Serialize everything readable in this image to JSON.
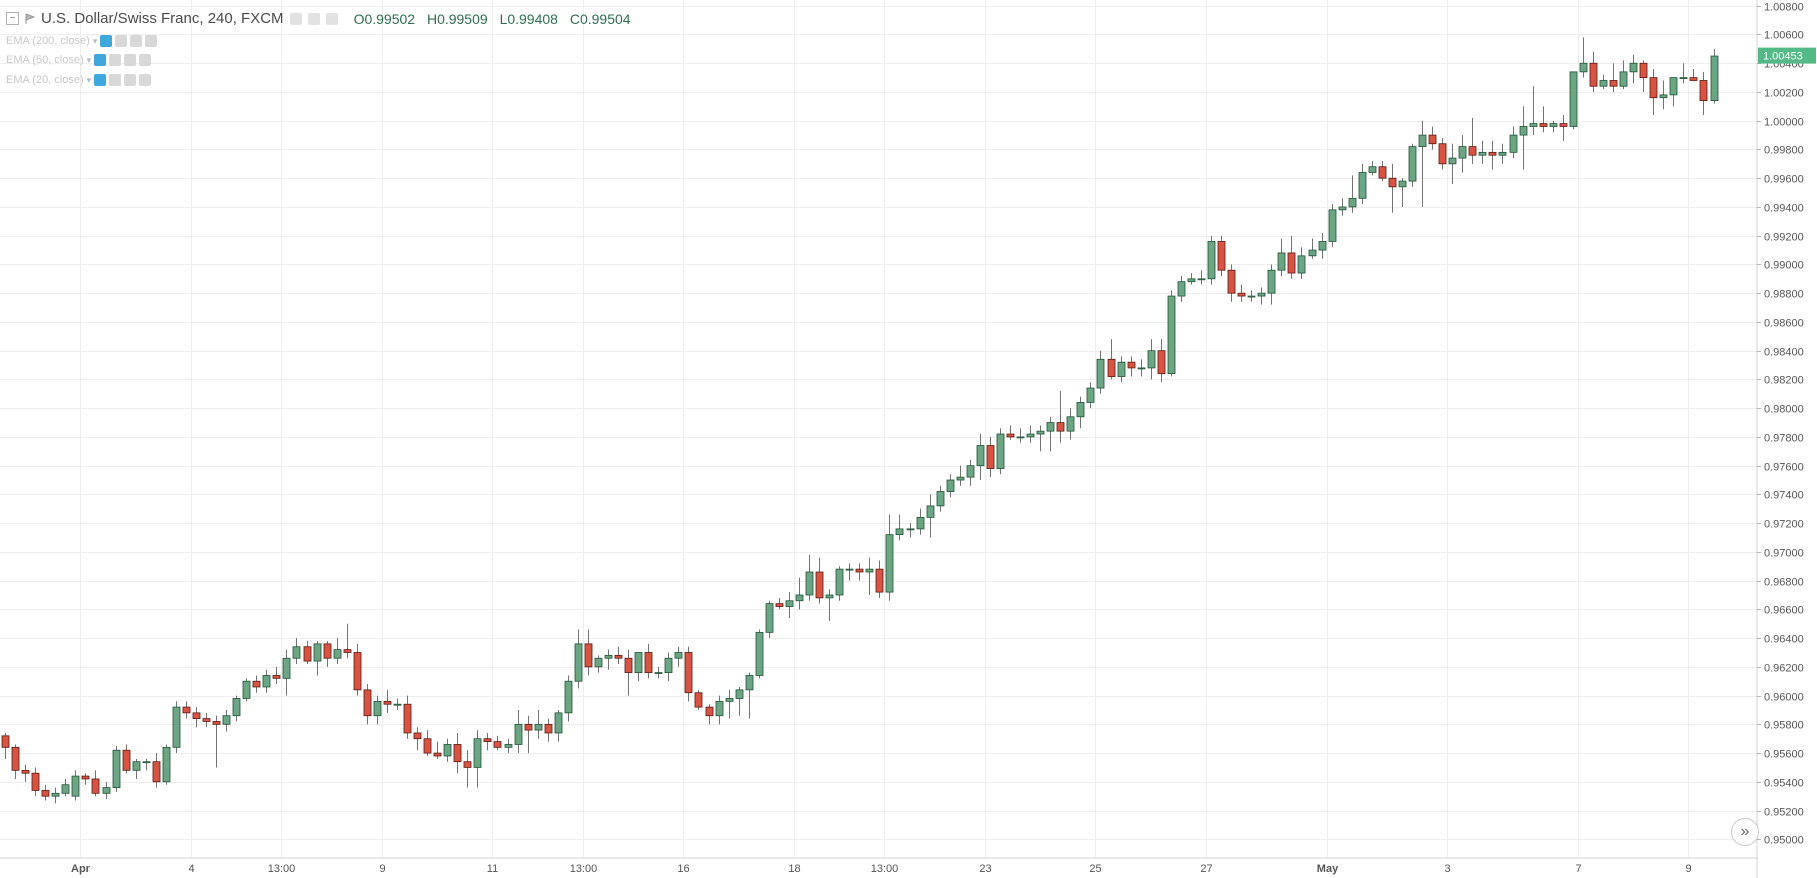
{
  "header": {
    "symbol_title": "U.S. Dollar/Swiss Franc, 240, FXCM",
    "ohlc": {
      "open": "O0.99502",
      "high": "H0.99509",
      "low": "L0.99408",
      "close": "C0.99504"
    }
  },
  "indicators": [
    {
      "label": "EMA (200, close)"
    },
    {
      "label": "EMA (50, close)"
    },
    {
      "label": "EMA (20, close)"
    }
  ],
  "colors": {
    "up": "#6ba583",
    "down": "#d75442",
    "up_border": "#225437",
    "down_border": "#5b1a13",
    "wick": "#737375",
    "grid": "#eeeeee",
    "price_tag": "#53b987"
  },
  "chart_data": {
    "type": "candlestick",
    "title": "U.S. Dollar/Swiss Franc, 240, FXCM",
    "last_price_label": "1.00453",
    "last_price": 1.00453,
    "ylim": [
      0.9487,
      1.0084
    ],
    "y_ticks": [
      "1.00800",
      "1.00600",
      "1.00400",
      "1.00200",
      "1.00000",
      "0.99800",
      "0.99600",
      "0.99400",
      "0.99200",
      "0.99000",
      "0.98800",
      "0.98600",
      "0.98400",
      "0.98200",
      "0.98000",
      "0.97800",
      "0.97600",
      "0.97400",
      "0.97200",
      "0.97000",
      "0.96800",
      "0.96600",
      "0.96400",
      "0.96200",
      "0.96000",
      "0.95800",
      "0.95600",
      "0.95400",
      "0.95200",
      "0.95000"
    ],
    "x_ticks": [
      {
        "label": "Apr",
        "bold": true,
        "bar": 7.5
      },
      {
        "label": "4",
        "bold": false,
        "bar": 18.5
      },
      {
        "label": "13:00",
        "bold": false,
        "bar": 27.5
      },
      {
        "label": "9",
        "bold": false,
        "bar": 37.5
      },
      {
        "label": "11",
        "bold": false,
        "bar": 48.5
      },
      {
        "label": "13:00",
        "bold": false,
        "bar": 57.5
      },
      {
        "label": "16",
        "bold": false,
        "bar": 67.5
      },
      {
        "label": "18",
        "bold": false,
        "bar": 78.5
      },
      {
        "label": "13:00",
        "bold": false,
        "bar": 87.5
      },
      {
        "label": "23",
        "bold": false,
        "bar": 97.5
      },
      {
        "label": "25",
        "bold": false,
        "bar": 108.5
      },
      {
        "label": "27",
        "bold": false,
        "bar": 119.5
      },
      {
        "label": "May",
        "bold": true,
        "bar": 131.5
      },
      {
        "label": "3",
        "bold": false,
        "bar": 143.5
      },
      {
        "label": "7",
        "bold": false,
        "bar": 156.5
      },
      {
        "label": "9",
        "bold": false,
        "bar": 167.5
      }
    ],
    "candles": [
      [
        0.9572,
        0.9574,
        0.9556,
        0.9564
      ],
      [
        0.9564,
        0.9566,
        0.9542,
        0.9548
      ],
      [
        0.9548,
        0.9552,
        0.954,
        0.9546
      ],
      [
        0.9546,
        0.955,
        0.953,
        0.9534
      ],
      [
        0.9534,
        0.9538,
        0.9527,
        0.953
      ],
      [
        0.953,
        0.9536,
        0.9525,
        0.9532
      ],
      [
        0.9532,
        0.9542,
        0.953,
        0.9538
      ],
      [
        0.953,
        0.9548,
        0.9527,
        0.9544
      ],
      [
        0.9544,
        0.9546,
        0.9538,
        0.9542
      ],
      [
        0.9542,
        0.9548,
        0.953,
        0.9532
      ],
      [
        0.9532,
        0.954,
        0.9528,
        0.9536
      ],
      [
        0.9536,
        0.9565,
        0.9533,
        0.9562
      ],
      [
        0.9562,
        0.9566,
        0.9546,
        0.9548
      ],
      [
        0.9548,
        0.9556,
        0.9542,
        0.9554
      ],
      [
        0.9554,
        0.9556,
        0.9548,
        0.9554
      ],
      [
        0.9554,
        0.956,
        0.9536,
        0.954
      ],
      [
        0.954,
        0.9566,
        0.9538,
        0.9564
      ],
      [
        0.9564,
        0.9596,
        0.956,
        0.9592
      ],
      [
        0.9592,
        0.9596,
        0.9584,
        0.9588
      ],
      [
        0.9588,
        0.9592,
        0.9578,
        0.9584
      ],
      [
        0.9584,
        0.9588,
        0.9578,
        0.9582
      ],
      [
        0.9582,
        0.9586,
        0.955,
        0.958
      ],
      [
        0.958,
        0.959,
        0.9575,
        0.9586
      ],
      [
        0.9586,
        0.96,
        0.9582,
        0.9598
      ],
      [
        0.9598,
        0.9612,
        0.9596,
        0.961
      ],
      [
        0.961,
        0.9614,
        0.9602,
        0.9606
      ],
      [
        0.9606,
        0.9618,
        0.9602,
        0.9614
      ],
      [
        0.9614,
        0.962,
        0.9608,
        0.9612
      ],
      [
        0.9612,
        0.9632,
        0.96,
        0.9626
      ],
      [
        0.9626,
        0.964,
        0.9622,
        0.9634
      ],
      [
        0.9634,
        0.9638,
        0.9622,
        0.9624
      ],
      [
        0.9624,
        0.9638,
        0.9614,
        0.9636
      ],
      [
        0.9636,
        0.9638,
        0.962,
        0.9626
      ],
      [
        0.9626,
        0.964,
        0.9622,
        0.9632
      ],
      [
        0.9632,
        0.965,
        0.9626,
        0.963
      ],
      [
        0.963,
        0.9636,
        0.96,
        0.9604
      ],
      [
        0.9604,
        0.9608,
        0.958,
        0.9586
      ],
      [
        0.9586,
        0.96,
        0.958,
        0.9596
      ],
      [
        0.9596,
        0.9604,
        0.9588,
        0.9594
      ],
      [
        0.9594,
        0.9598,
        0.959,
        0.9594
      ],
      [
        0.9594,
        0.96,
        0.957,
        0.9574
      ],
      [
        0.9574,
        0.9578,
        0.9562,
        0.957
      ],
      [
        0.957,
        0.9576,
        0.9558,
        0.956
      ],
      [
        0.956,
        0.9568,
        0.9556,
        0.9558
      ],
      [
        0.9558,
        0.957,
        0.9554,
        0.9566
      ],
      [
        0.9566,
        0.9574,
        0.9546,
        0.9554
      ],
      [
        0.9554,
        0.9562,
        0.9536,
        0.955
      ],
      [
        0.955,
        0.9576,
        0.9536,
        0.957
      ],
      [
        0.957,
        0.9574,
        0.9562,
        0.9568
      ],
      [
        0.9568,
        0.9572,
        0.9562,
        0.9564
      ],
      [
        0.9564,
        0.957,
        0.956,
        0.9566
      ],
      [
        0.9566,
        0.959,
        0.956,
        0.958
      ],
      [
        0.958,
        0.9586,
        0.956,
        0.9576
      ],
      [
        0.9576,
        0.959,
        0.957,
        0.958
      ],
      [
        0.958,
        0.9584,
        0.9568,
        0.9574
      ],
      [
        0.9574,
        0.959,
        0.9568,
        0.9588
      ],
      [
        0.9588,
        0.9614,
        0.9582,
        0.961
      ],
      [
        0.961,
        0.9646,
        0.9605,
        0.9636
      ],
      [
        0.9636,
        0.9646,
        0.9614,
        0.962
      ],
      [
        0.962,
        0.9628,
        0.9616,
        0.9626
      ],
      [
        0.9626,
        0.9632,
        0.9618,
        0.9628
      ],
      [
        0.9628,
        0.9634,
        0.9622,
        0.9626
      ],
      [
        0.9626,
        0.9632,
        0.96,
        0.9616
      ],
      [
        0.9616,
        0.963,
        0.961,
        0.963
      ],
      [
        0.963,
        0.9636,
        0.9612,
        0.9616
      ],
      [
        0.9616,
        0.962,
        0.9612,
        0.9616
      ],
      [
        0.9616,
        0.963,
        0.961,
        0.9626
      ],
      [
        0.9626,
        0.9634,
        0.962,
        0.963
      ],
      [
        0.963,
        0.9634,
        0.9596,
        0.9602
      ],
      [
        0.9602,
        0.9604,
        0.959,
        0.9592
      ],
      [
        0.9592,
        0.9594,
        0.958,
        0.9586
      ],
      [
        0.9586,
        0.96,
        0.958,
        0.9596
      ],
      [
        0.9596,
        0.9604,
        0.9584,
        0.9598
      ],
      [
        0.9598,
        0.9606,
        0.9586,
        0.9604
      ],
      [
        0.9604,
        0.9616,
        0.9584,
        0.9614
      ],
      [
        0.9614,
        0.9646,
        0.9612,
        0.9644
      ],
      [
        0.9644,
        0.9666,
        0.964,
        0.9664
      ],
      [
        0.9664,
        0.9668,
        0.966,
        0.9662
      ],
      [
        0.9662,
        0.9672,
        0.9654,
        0.9666
      ],
      [
        0.9666,
        0.9682,
        0.966,
        0.967
      ],
      [
        0.967,
        0.9698,
        0.9666,
        0.9686
      ],
      [
        0.9686,
        0.9696,
        0.9664,
        0.9668
      ],
      [
        0.9668,
        0.9674,
        0.9652,
        0.967
      ],
      [
        0.967,
        0.969,
        0.9666,
        0.9688
      ],
      [
        0.9688,
        0.9692,
        0.968,
        0.9688
      ],
      [
        0.9688,
        0.9692,
        0.968,
        0.9686
      ],
      [
        0.9686,
        0.9696,
        0.967,
        0.9688
      ],
      [
        0.9688,
        0.9694,
        0.9668,
        0.9672
      ],
      [
        0.9672,
        0.9726,
        0.9666,
        0.9712
      ],
      [
        0.9712,
        0.9726,
        0.9708,
        0.9716
      ],
      [
        0.9716,
        0.972,
        0.971,
        0.9716
      ],
      [
        0.9716,
        0.973,
        0.9712,
        0.9724
      ],
      [
        0.9724,
        0.974,
        0.971,
        0.9732
      ],
      [
        0.9732,
        0.9746,
        0.9728,
        0.9742
      ],
      [
        0.9742,
        0.9754,
        0.9738,
        0.975
      ],
      [
        0.975,
        0.976,
        0.9746,
        0.9752
      ],
      [
        0.9752,
        0.9764,
        0.9746,
        0.976
      ],
      [
        0.976,
        0.9782,
        0.975,
        0.9774
      ],
      [
        0.9774,
        0.978,
        0.9752,
        0.9758
      ],
      [
        0.9758,
        0.9786,
        0.9754,
        0.9782
      ],
      [
        0.9782,
        0.9788,
        0.9778,
        0.978
      ],
      [
        0.978,
        0.9786,
        0.9776,
        0.978
      ],
      [
        0.978,
        0.9788,
        0.9776,
        0.9782
      ],
      [
        0.9782,
        0.9788,
        0.977,
        0.9784
      ],
      [
        0.9784,
        0.9794,
        0.977,
        0.979
      ],
      [
        0.979,
        0.9812,
        0.9776,
        0.9784
      ],
      [
        0.9784,
        0.98,
        0.9778,
        0.9794
      ],
      [
        0.9794,
        0.9808,
        0.9786,
        0.9804
      ],
      [
        0.9804,
        0.9818,
        0.98,
        0.9814
      ],
      [
        0.9814,
        0.984,
        0.981,
        0.9834
      ],
      [
        0.9834,
        0.9848,
        0.982,
        0.9822
      ],
      [
        0.9822,
        0.9836,
        0.9818,
        0.9832
      ],
      [
        0.9832,
        0.9836,
        0.9822,
        0.9828
      ],
      [
        0.9828,
        0.9834,
        0.9822,
        0.9828
      ],
      [
        0.9828,
        0.9848,
        0.982,
        0.984
      ],
      [
        0.984,
        0.9848,
        0.9818,
        0.9824
      ],
      [
        0.9824,
        0.9882,
        0.9822,
        0.9878
      ],
      [
        0.9878,
        0.9892,
        0.9874,
        0.9888
      ],
      [
        0.9888,
        0.9894,
        0.9886,
        0.989
      ],
      [
        0.989,
        0.9896,
        0.9886,
        0.989
      ],
      [
        0.989,
        0.992,
        0.9886,
        0.9916
      ],
      [
        0.9916,
        0.992,
        0.9892,
        0.9896
      ],
      [
        0.9896,
        0.99,
        0.9874,
        0.988
      ],
      [
        0.988,
        0.9886,
        0.9874,
        0.9878
      ],
      [
        0.9878,
        0.9882,
        0.9874,
        0.9878
      ],
      [
        0.9878,
        0.9884,
        0.9872,
        0.988
      ],
      [
        0.988,
        0.99,
        0.9872,
        0.9896
      ],
      [
        0.9896,
        0.9918,
        0.9892,
        0.9908
      ],
      [
        0.9908,
        0.992,
        0.989,
        0.9894
      ],
      [
        0.9894,
        0.9912,
        0.989,
        0.9906
      ],
      [
        0.9906,
        0.9918,
        0.9904,
        0.991
      ],
      [
        0.991,
        0.9922,
        0.9904,
        0.9916
      ],
      [
        0.9916,
        0.9942,
        0.9912,
        0.9938
      ],
      [
        0.9938,
        0.9946,
        0.9934,
        0.994
      ],
      [
        0.994,
        0.9962,
        0.9936,
        0.9946
      ],
      [
        0.9946,
        0.997,
        0.9942,
        0.9964
      ],
      [
        0.9964,
        0.9972,
        0.9962,
        0.9968
      ],
      [
        0.9968,
        0.9972,
        0.9958,
        0.996
      ],
      [
        0.996,
        0.997,
        0.9936,
        0.9954
      ],
      [
        0.9954,
        0.996,
        0.994,
        0.9958
      ],
      [
        0.9958,
        0.9984,
        0.9954,
        0.9982
      ],
      [
        0.9982,
        1.0,
        0.994,
        0.999
      ],
      [
        0.999,
        0.9996,
        0.998,
        0.9984
      ],
      [
        0.9984,
        0.9988,
        0.9966,
        0.997
      ],
      [
        0.997,
        0.9984,
        0.9956,
        0.9974
      ],
      [
        0.9974,
        0.999,
        0.9964,
        0.9982
      ],
      [
        0.9982,
        1.0002,
        0.997,
        0.9976
      ],
      [
        0.9976,
        0.9986,
        0.997,
        0.9978
      ],
      [
        0.9978,
        0.9986,
        0.9966,
        0.9976
      ],
      [
        0.9976,
        0.9984,
        0.997,
        0.9978
      ],
      [
        0.9978,
        0.9996,
        0.9974,
        0.999
      ],
      [
        0.999,
        1.001,
        0.9966,
        0.9996
      ],
      [
        0.9996,
        1.0024,
        0.999,
        0.9998
      ],
      [
        0.9998,
        1.001,
        0.9992,
        0.9996
      ],
      [
        0.9996,
        1.0,
        0.9992,
        0.9998
      ],
      [
        0.9998,
        1.0004,
        0.9986,
        0.9996
      ],
      [
        0.9996,
        1.0034,
        0.9994,
        1.0034
      ],
      [
        1.0034,
        1.0058,
        1.003,
        1.004
      ],
      [
        1.004,
        1.0048,
        1.002,
        1.0024
      ],
      [
        1.0024,
        1.0032,
        1.0022,
        1.0028
      ],
      [
        1.0028,
        1.004,
        1.002,
        1.0024
      ],
      [
        1.0024,
        1.0042,
        1.0022,
        1.0034
      ],
      [
        1.0034,
        1.0046,
        1.0026,
        1.004
      ],
      [
        1.004,
        1.0042,
        1.002,
        1.003
      ],
      [
        1.003,
        1.0036,
        1.0004,
        1.0016
      ],
      [
        1.0016,
        1.0028,
        1.0008,
        1.0018
      ],
      [
        1.0018,
        1.003,
        1.001,
        1.003
      ],
      [
        1.003,
        1.004,
        1.0026,
        1.003
      ],
      [
        1.003,
        1.0036,
        1.0028,
        1.0028
      ],
      [
        1.0028,
        1.0034,
        1.0004,
        1.0014
      ],
      [
        1.0014,
        1.005,
        1.0012,
        1.0045
      ]
    ]
  }
}
